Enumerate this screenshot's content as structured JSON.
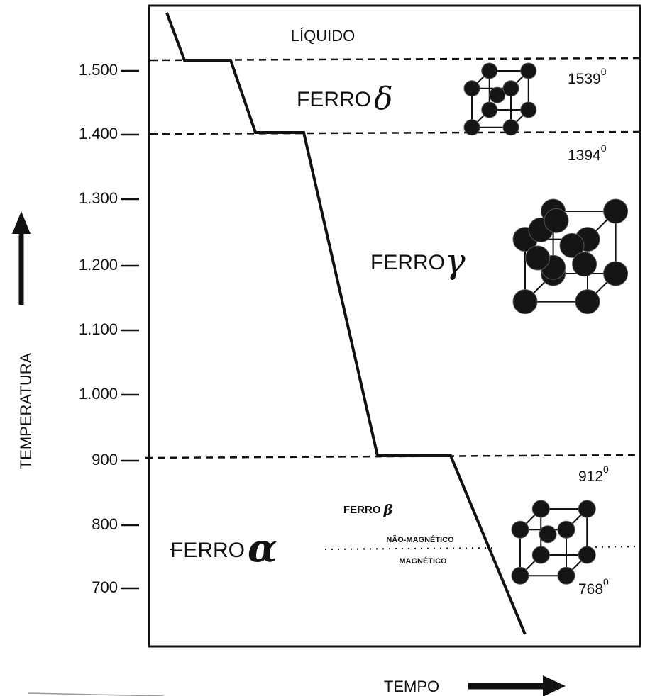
{
  "y_axis": {
    "label": "TEMPERATURA",
    "ticks": [
      "1.500",
      "1.400",
      "1.300",
      "1.200",
      "1.100",
      "1.000",
      "900",
      "800",
      "700"
    ]
  },
  "x_axis": {
    "label": "TEMPO"
  },
  "phases": [
    {
      "label": "LÍQUIDO"
    },
    {
      "label": "FERRO",
      "symbol": "δ"
    },
    {
      "label": "FERRO",
      "symbol": "γ"
    },
    {
      "label": "FERRO",
      "symbol": "β"
    },
    {
      "label": "FERRO",
      "symbol": "α"
    }
  ],
  "transitions": [
    {
      "temperature": "1539",
      "sup": "0"
    },
    {
      "temperature": "1394",
      "sup": "0"
    },
    {
      "temperature": "912",
      "sup": "0"
    },
    {
      "temperature": "768",
      "sup": "0"
    }
  ],
  "magnetism": {
    "above": "NÃO-MAGNÉTICO",
    "below": "MAGNÉTICO"
  }
}
